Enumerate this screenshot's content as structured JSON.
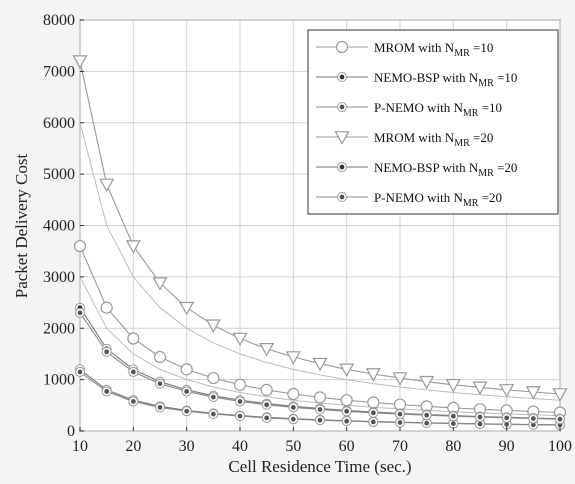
{
  "chart_data": {
    "type": "line",
    "xlabel": "Cell Residence Time (sec.)",
    "ylabel": "Packet Delivery Cost",
    "xlim": [
      10,
      100
    ],
    "ylim": [
      0,
      8000
    ],
    "xticks": [
      10,
      20,
      30,
      40,
      50,
      60,
      70,
      80,
      90,
      100
    ],
    "yticks": [
      0,
      1000,
      2000,
      3000,
      4000,
      5000,
      6000,
      7000,
      8000
    ],
    "grid": true,
    "legend_position": "top-right",
    "x": [
      10,
      15,
      20,
      25,
      30,
      35,
      40,
      45,
      50,
      55,
      60,
      65,
      70,
      75,
      80,
      85,
      90,
      95,
      100
    ],
    "series": [
      {
        "name": "MROM with N_MR =10",
        "label_main": "MROM with N",
        "label_sub": "MR",
        "label_tail": " =10",
        "marker": "circle",
        "color": "#999999",
        "values": [
          3600,
          2400,
          1800,
          1440,
          1200,
          1030,
          900,
          800,
          720,
          655,
          600,
          555,
          515,
          480,
          450,
          425,
          400,
          380,
          360
        ]
      },
      {
        "name": "NEMO-BSP with N_MR =10",
        "label_main": "NEMO-BSP with N",
        "label_sub": "MR",
        "label_tail": " =10",
        "marker": "dot",
        "color": "#777777",
        "values": [
          1200,
          800,
          600,
          480,
          400,
          343,
          300,
          267,
          240,
          218,
          200,
          185,
          171,
          160,
          150,
          141,
          133,
          126,
          120
        ]
      },
      {
        "name": "P-NEMO with N_MR =10",
        "label_main": "P-NEMO with N",
        "label_sub": "MR",
        "label_tail": " =10",
        "marker": "dot",
        "color": "#888888",
        "values": [
          1150,
          770,
          575,
          460,
          385,
          330,
          290,
          255,
          230,
          210,
          192,
          177,
          165,
          153,
          144,
          135,
          128,
          121,
          115
        ]
      },
      {
        "name": "MROM with N_MR =20",
        "label_main": "MROM with N",
        "label_sub": "MR",
        "label_tail": " =20",
        "marker": "triangle-down",
        "color": "#999999",
        "values": [
          7200,
          4800,
          3600,
          2880,
          2400,
          2060,
          1800,
          1600,
          1440,
          1310,
          1200,
          1110,
          1030,
          960,
          900,
          850,
          800,
          760,
          720
        ]
      },
      {
        "name": "NEMO-BSP with N_MR =20",
        "label_main": "NEMO-BSP with N",
        "label_sub": "MR",
        "label_tail": " =20",
        "marker": "dot",
        "color": "#777777",
        "values": [
          2400,
          1600,
          1200,
          960,
          800,
          686,
          600,
          533,
          480,
          436,
          400,
          369,
          343,
          320,
          300,
          282,
          267,
          253,
          240
        ]
      },
      {
        "name": "P-NEMO with N_MR =20",
        "label_main": "P-NEMO with N",
        "label_sub": "MR",
        "label_tail": " =20",
        "marker": "dot",
        "color": "#888888",
        "values": [
          2300,
          1540,
          1150,
          920,
          770,
          660,
          575,
          510,
          460,
          418,
          383,
          354,
          329,
          307,
          288,
          271,
          256,
          242,
          230
        ]
      }
    ]
  },
  "extra_lines": [
    {
      "color": "#bbbbbb",
      "values": [
        6000,
        4000,
        3000,
        2400,
        2000,
        1714,
        1500,
        1333,
        1200,
        1091,
        1000,
        923,
        857,
        800,
        750,
        706,
        667,
        632,
        600
      ]
    },
    {
      "color": "#bbbbbb",
      "values": [
        3000,
        2000,
        1500,
        1200,
        1000,
        857,
        750,
        667,
        600,
        545,
        500,
        462,
        429,
        400,
        375,
        353,
        333,
        316,
        300
      ]
    }
  ]
}
